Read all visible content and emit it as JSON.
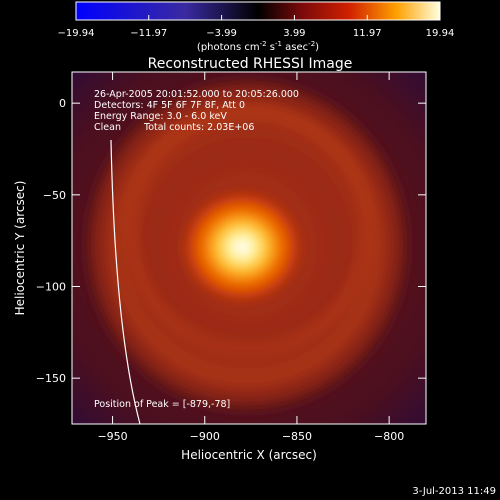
{
  "chart_data": {
    "type": "heatmap",
    "title": "Reconstructed RHESSI Image",
    "xlabel": "Heliocentric X (arcsec)",
    "ylabel": "Heliocentric Y (arcsec)",
    "xlim": [
      -972,
      -780
    ],
    "ylim": [
      -175,
      17
    ],
    "xticks": [
      -950,
      -900,
      -850,
      -800
    ],
    "yticks": [
      -150,
      -100,
      -50,
      0
    ],
    "colorbar": {
      "ticks": [
        -19.94,
        -11.97,
        -3.99,
        3.99,
        11.97,
        19.94
      ],
      "units_main": "(photons cm",
      "units_sup1": "-2",
      "units_mid1": " s",
      "units_sup2": "-1",
      "units_mid2": " asec",
      "units_sup3": "-2",
      "units_end": ")"
    },
    "peak": {
      "x": -879,
      "y": -78,
      "value": 19.94
    },
    "annotations": {
      "time_range": "26-Apr-2005 20:01:52.000 to 20:05:26.000",
      "detectors": "Detectors: 4F 5F 6F 7F 8F, Att 0",
      "energy": "Energy Range: 3.0 - 6.0 keV",
      "method": "Clean",
      "counts": "Total counts: 2.03E+06",
      "peak_label": "Position of Peak = [-879,-78]"
    },
    "footer_date": "3-Jul-2013 11:49",
    "colors": {
      "low": "#0000ff",
      "zero": "#000000",
      "mid": "#c03000",
      "high": "#ffffff"
    }
  }
}
